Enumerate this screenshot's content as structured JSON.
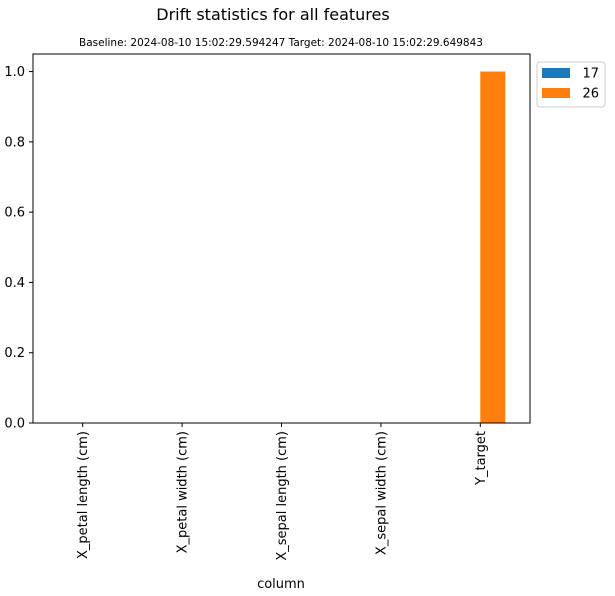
{
  "chart_data": {
    "type": "bar",
    "title": "Drift statistics for all features",
    "subtitle": "Baseline: 2024-08-10 15:02:29.594247 Target: 2024-08-10 15:02:29.649843",
    "xlabel": "column",
    "ylabel": "",
    "categories": [
      "X_petal length (cm)",
      "X_petal width (cm)",
      "X_sepal length (cm)",
      "X_sepal width (cm)",
      "Y_target"
    ],
    "series": [
      {
        "name": "17",
        "values": [
          0,
          0,
          0,
          0,
          0
        ],
        "color": "#1f77b4"
      },
      {
        "name": "26",
        "values": [
          0,
          0,
          0,
          0,
          1.0
        ],
        "color": "#ff7f0e"
      }
    ],
    "ylim": [
      0,
      1.05
    ],
    "yticks": [
      "0.0",
      "0.2",
      "0.4",
      "0.6",
      "0.8",
      "1.0"
    ],
    "grid": false,
    "legend_position": "outside-top-right"
  }
}
